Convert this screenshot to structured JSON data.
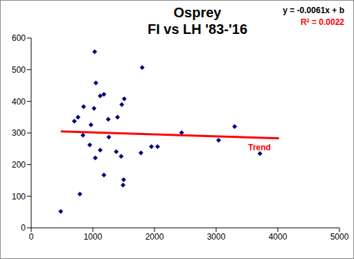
{
  "chart_data": {
    "type": "scatter",
    "title": "Osprey",
    "subtitle": "FI vs LH '83-'16",
    "xlim": [
      0,
      5000
    ],
    "xticks": [
      0,
      1000,
      2000,
      3000,
      4000,
      5000
    ],
    "ylim": [
      0,
      600
    ],
    "yticks": [
      0,
      100,
      200,
      300,
      400,
      500,
      600
    ],
    "grid": false,
    "series": [
      {
        "x": [
          480,
          790,
          700,
          760,
          850,
          840,
          950,
          970,
          1030,
          1020,
          1050,
          1040,
          1120,
          1120,
          1180,
          1180,
          1250,
          1260,
          1380,
          1400,
          1460,
          1470,
          1490,
          1500,
          1510,
          1780,
          1800,
          1950,
          2050,
          2440,
          3040,
          3300,
          3710
        ],
        "values": [
          52,
          107,
          337,
          350,
          383,
          293,
          262,
          326,
          557,
          378,
          458,
          221,
          246,
          417,
          422,
          167,
          343,
          287,
          241,
          350,
          226,
          390,
          135,
          152,
          408,
          237,
          507,
          257,
          257,
          301,
          277,
          320,
          235
        ],
        "color": "#000080",
        "marker": "diamond"
      },
      {
        "name": "Trend",
        "type": "line",
        "x": [
          480,
          4020
        ],
        "values": [
          305,
          283
        ],
        "color": "#ff0000"
      }
    ],
    "annotations": [
      {
        "text": "y = -0.0061x + b",
        "color": "#000000"
      },
      {
        "text": "R² = 0.0022",
        "color": "#ff0000"
      }
    ]
  }
}
